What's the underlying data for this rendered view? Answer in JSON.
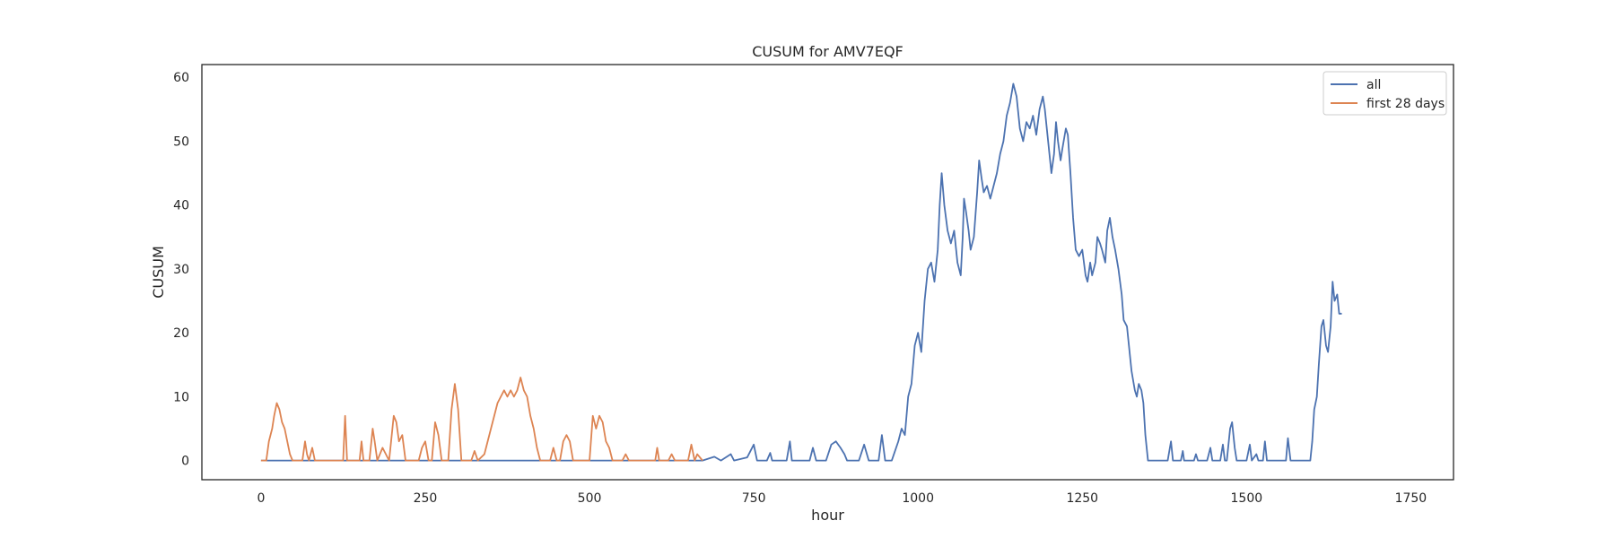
{
  "chart_data": {
    "type": "line",
    "title": "CUSUM for AMV7EQF",
    "xlabel": "hour",
    "ylabel": "CUSUM",
    "xlim": [
      -90,
      1815
    ],
    "ylim": [
      -3,
      62
    ],
    "xticks": [
      0,
      250,
      500,
      750,
      1000,
      1250,
      1500,
      1750
    ],
    "yticks": [
      0,
      10,
      20,
      30,
      40,
      50,
      60
    ],
    "grid": false,
    "legend_position": "top-right",
    "series": [
      {
        "name": "all",
        "color": "#4c72b0",
        "points": [
          [
            0,
            0
          ],
          [
            672,
            0
          ],
          [
            690,
            0.6
          ],
          [
            700,
            0
          ],
          [
            715,
            1
          ],
          [
            720,
            0
          ],
          [
            740,
            0.5
          ],
          [
            745,
            1.5
          ],
          [
            750,
            2.5
          ],
          [
            755,
            0
          ],
          [
            770,
            0
          ],
          [
            775,
            1.2
          ],
          [
            778,
            0
          ],
          [
            800,
            0
          ],
          [
            805,
            3
          ],
          [
            808,
            0
          ],
          [
            835,
            0
          ],
          [
            840,
            2
          ],
          [
            845,
            0
          ],
          [
            860,
            0
          ],
          [
            868,
            2.5
          ],
          [
            875,
            3
          ],
          [
            882,
            2
          ],
          [
            888,
            1
          ],
          [
            892,
            0
          ],
          [
            910,
            0
          ],
          [
            918,
            2.5
          ],
          [
            925,
            0
          ],
          [
            940,
            0
          ],
          [
            945,
            4
          ],
          [
            950,
            0
          ],
          [
            960,
            0
          ],
          [
            970,
            3
          ],
          [
            975,
            5
          ],
          [
            980,
            4
          ],
          [
            985,
            10
          ],
          [
            990,
            12
          ],
          [
            995,
            18
          ],
          [
            1000,
            20
          ],
          [
            1005,
            17
          ],
          [
            1010,
            25
          ],
          [
            1015,
            30
          ],
          [
            1020,
            31
          ],
          [
            1025,
            28
          ],
          [
            1030,
            33
          ],
          [
            1033,
            40
          ],
          [
            1036,
            45
          ],
          [
            1040,
            40
          ],
          [
            1045,
            36
          ],
          [
            1050,
            34
          ],
          [
            1055,
            36
          ],
          [
            1060,
            31
          ],
          [
            1065,
            29
          ],
          [
            1068,
            35
          ],
          [
            1070,
            41
          ],
          [
            1073,
            39
          ],
          [
            1077,
            36
          ],
          [
            1080,
            33
          ],
          [
            1085,
            35
          ],
          [
            1090,
            42
          ],
          [
            1093,
            47
          ],
          [
            1097,
            44
          ],
          [
            1100,
            42
          ],
          [
            1105,
            43
          ],
          [
            1110,
            41
          ],
          [
            1115,
            43
          ],
          [
            1120,
            45
          ],
          [
            1125,
            48
          ],
          [
            1130,
            50
          ],
          [
            1135,
            54
          ],
          [
            1140,
            56
          ],
          [
            1145,
            59
          ],
          [
            1150,
            57
          ],
          [
            1155,
            52
          ],
          [
            1160,
            50
          ],
          [
            1165,
            53
          ],
          [
            1170,
            52
          ],
          [
            1175,
            54
          ],
          [
            1180,
            51
          ],
          [
            1185,
            55
          ],
          [
            1190,
            57
          ],
          [
            1193,
            55
          ],
          [
            1197,
            51
          ],
          [
            1200,
            48
          ],
          [
            1203,
            45
          ],
          [
            1207,
            48
          ],
          [
            1210,
            53
          ],
          [
            1213,
            50
          ],
          [
            1217,
            47
          ],
          [
            1220,
            49
          ],
          [
            1225,
            52
          ],
          [
            1228,
            51
          ],
          [
            1232,
            45
          ],
          [
            1236,
            38
          ],
          [
            1240,
            33
          ],
          [
            1245,
            32
          ],
          [
            1250,
            33
          ],
          [
            1255,
            29
          ],
          [
            1258,
            28
          ],
          [
            1262,
            31
          ],
          [
            1265,
            29
          ],
          [
            1270,
            31
          ],
          [
            1273,
            35
          ],
          [
            1277,
            34
          ],
          [
            1280,
            33
          ],
          [
            1285,
            31
          ],
          [
            1288,
            36
          ],
          [
            1292,
            38
          ],
          [
            1296,
            35
          ],
          [
            1300,
            33
          ],
          [
            1305,
            30
          ],
          [
            1310,
            26
          ],
          [
            1313,
            22
          ],
          [
            1318,
            21
          ],
          [
            1322,
            17
          ],
          [
            1325,
            14
          ],
          [
            1330,
            11
          ],
          [
            1333,
            10
          ],
          [
            1336,
            12
          ],
          [
            1340,
            11
          ],
          [
            1343,
            9
          ],
          [
            1346,
            4
          ],
          [
            1350,
            0
          ],
          [
            1380,
            0
          ],
          [
            1385,
            3
          ],
          [
            1388,
            0
          ],
          [
            1400,
            0
          ],
          [
            1403,
            1.5
          ],
          [
            1405,
            0
          ],
          [
            1420,
            0
          ],
          [
            1423,
            1
          ],
          [
            1426,
            0
          ],
          [
            1440,
            0
          ],
          [
            1445,
            2
          ],
          [
            1448,
            0
          ],
          [
            1460,
            0
          ],
          [
            1464,
            2.5
          ],
          [
            1467,
            0
          ],
          [
            1470,
            0
          ],
          [
            1475,
            5
          ],
          [
            1478,
            6
          ],
          [
            1482,
            2
          ],
          [
            1485,
            0
          ],
          [
            1500,
            0
          ],
          [
            1505,
            2.5
          ],
          [
            1508,
            0
          ],
          [
            1515,
            1
          ],
          [
            1518,
            0
          ],
          [
            1525,
            0
          ],
          [
            1528,
            3
          ],
          [
            1531,
            0
          ],
          [
            1560,
            0
          ],
          [
            1563,
            3.5
          ],
          [
            1567,
            0
          ],
          [
            1597,
            0
          ],
          [
            1600,
            3
          ],
          [
            1603,
            8
          ],
          [
            1607,
            10
          ],
          [
            1610,
            15
          ],
          [
            1614,
            21
          ],
          [
            1617,
            22
          ],
          [
            1621,
            18
          ],
          [
            1624,
            17
          ],
          [
            1628,
            21
          ],
          [
            1631,
            28
          ],
          [
            1634,
            25
          ],
          [
            1638,
            26
          ],
          [
            1641,
            23
          ],
          [
            1645,
            23
          ]
        ]
      },
      {
        "name": "first 28 days",
        "color": "#dd8452",
        "points": [
          [
            0,
            0
          ],
          [
            8,
            0
          ],
          [
            12,
            3
          ],
          [
            17,
            5
          ],
          [
            20,
            7
          ],
          [
            24,
            9
          ],
          [
            28,
            8
          ],
          [
            32,
            6
          ],
          [
            36,
            5
          ],
          [
            40,
            3
          ],
          [
            44,
            1
          ],
          [
            48,
            0
          ],
          [
            63,
            0
          ],
          [
            67,
            3
          ],
          [
            70,
            1
          ],
          [
            73,
            0
          ],
          [
            78,
            2
          ],
          [
            82,
            0
          ],
          [
            125,
            0
          ],
          [
            128,
            7
          ],
          [
            131,
            0
          ],
          [
            150,
            0
          ],
          [
            153,
            3
          ],
          [
            156,
            0
          ],
          [
            165,
            0
          ],
          [
            170,
            5
          ],
          [
            173,
            3
          ],
          [
            177,
            0
          ],
          [
            185,
            2
          ],
          [
            190,
            1
          ],
          [
            195,
            0
          ],
          [
            198,
            3
          ],
          [
            202,
            7
          ],
          [
            206,
            6
          ],
          [
            210,
            3
          ],
          [
            215,
            4
          ],
          [
            220,
            0
          ],
          [
            240,
            0
          ],
          [
            245,
            2
          ],
          [
            250,
            3
          ],
          [
            255,
            0
          ],
          [
            260,
            0
          ],
          [
            265,
            6
          ],
          [
            270,
            4
          ],
          [
            275,
            0
          ],
          [
            285,
            0
          ],
          [
            290,
            8
          ],
          [
            295,
            12
          ],
          [
            300,
            8
          ],
          [
            305,
            0
          ],
          [
            320,
            0
          ],
          [
            325,
            1.5
          ],
          [
            330,
            0
          ],
          [
            340,
            1
          ],
          [
            345,
            3
          ],
          [
            350,
            5
          ],
          [
            355,
            7
          ],
          [
            360,
            9
          ],
          [
            365,
            10
          ],
          [
            370,
            11
          ],
          [
            375,
            10
          ],
          [
            380,
            11
          ],
          [
            385,
            10
          ],
          [
            390,
            11
          ],
          [
            395,
            13
          ],
          [
            400,
            11
          ],
          [
            405,
            10
          ],
          [
            410,
            7
          ],
          [
            415,
            5
          ],
          [
            420,
            2
          ],
          [
            425,
            0
          ],
          [
            440,
            0
          ],
          [
            445,
            2
          ],
          [
            450,
            0
          ],
          [
            455,
            0
          ],
          [
            460,
            3
          ],
          [
            465,
            4
          ],
          [
            470,
            3
          ],
          [
            475,
            0
          ],
          [
            500,
            0
          ],
          [
            505,
            7
          ],
          [
            510,
            5
          ],
          [
            515,
            7
          ],
          [
            520,
            6
          ],
          [
            525,
            3
          ],
          [
            530,
            2
          ],
          [
            535,
            0
          ],
          [
            550,
            0
          ],
          [
            555,
            1
          ],
          [
            560,
            0
          ],
          [
            600,
            0
          ],
          [
            603,
            2
          ],
          [
            606,
            0
          ],
          [
            620,
            0
          ],
          [
            625,
            1
          ],
          [
            630,
            0
          ],
          [
            650,
            0
          ],
          [
            655,
            2.5
          ],
          [
            660,
            0
          ],
          [
            664,
            1
          ],
          [
            672,
            0
          ]
        ]
      }
    ]
  }
}
